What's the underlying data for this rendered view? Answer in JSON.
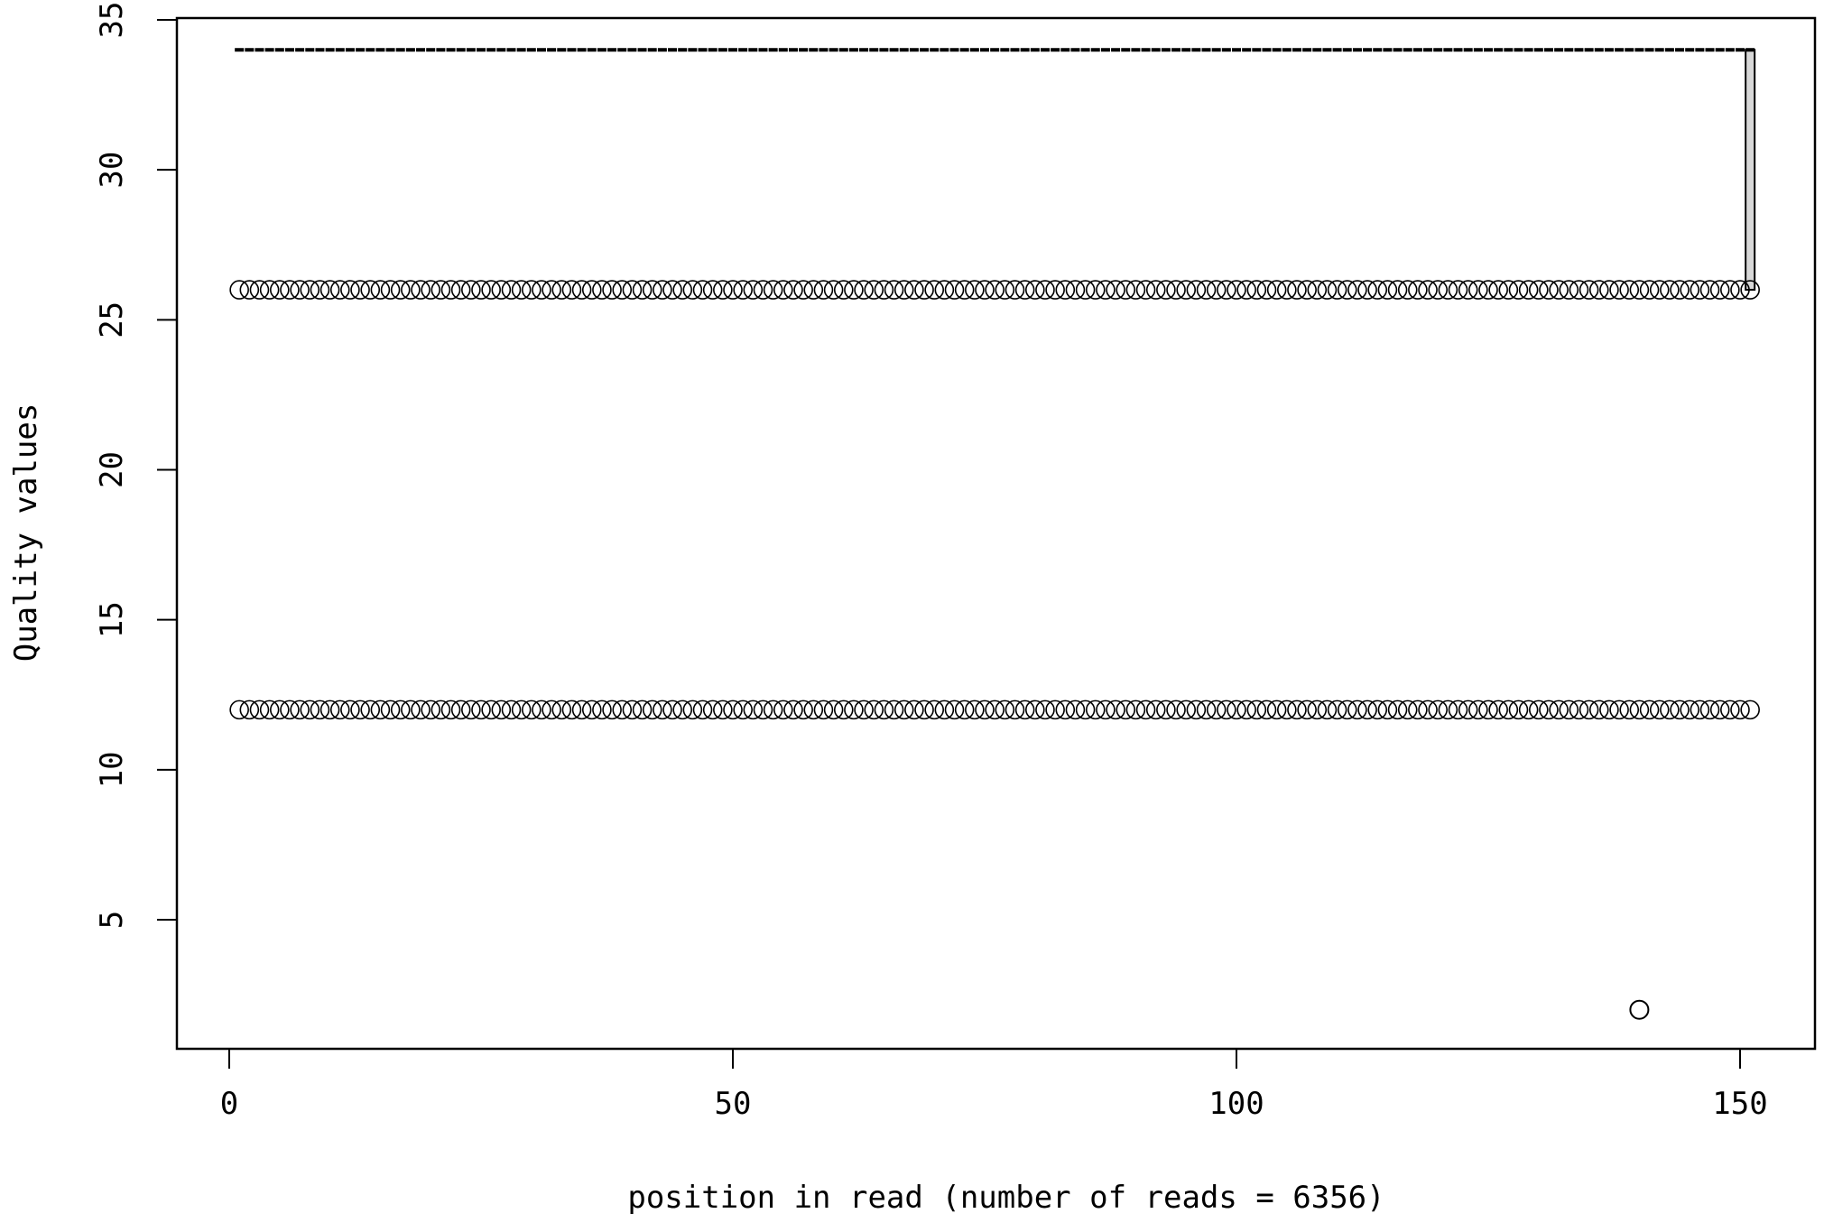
{
  "chart_data": {
    "type": "scatter",
    "title": "",
    "xlabel": "position in read (number of reads = 6356)",
    "ylabel": "Quality values",
    "xlim": [
      -5,
      158
    ],
    "ylim": [
      0,
      35
    ],
    "xticks": [
      0,
      50,
      100,
      150
    ],
    "yticks": [
      5,
      10,
      15,
      20,
      25,
      30,
      35
    ],
    "grid": false,
    "legend": "none",
    "x_range": [
      1,
      151
    ],
    "series": [
      {
        "values_by_position": "constant",
        "y": 34,
        "marker": "line"
      },
      {
        "values_by_position": "constant",
        "y": 26,
        "marker": "open-circle"
      },
      {
        "values_by_position": "constant",
        "y": 12,
        "marker": "open-circle"
      }
    ],
    "outliers": [
      {
        "x": 140,
        "y": 2,
        "marker": "open-circle"
      }
    ],
    "box_at_end": {
      "x": 151,
      "low": 26,
      "high": 34,
      "fill": "#d8d8d8"
    },
    "colors": {
      "ink": "#000000",
      "box_fill": "#d8d8d8",
      "background": "#ffffff"
    }
  }
}
